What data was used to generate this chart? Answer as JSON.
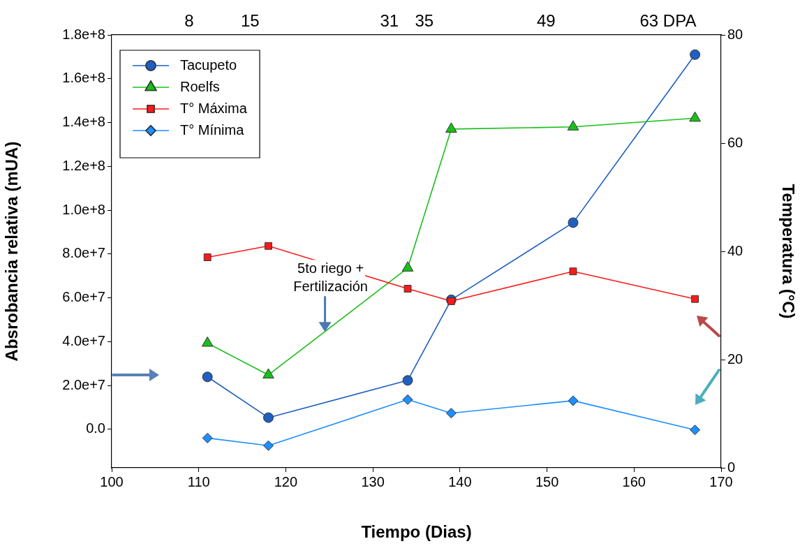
{
  "chart_data": {
    "type": "line",
    "xlabel": "Tiempo (Dias)",
    "ylabel": "Absrobancia relativa (mUA)",
    "y2label": "Temperatura (°C)",
    "x": [
      111,
      118,
      134,
      139,
      153,
      167
    ],
    "series": [
      {
        "name": "Tacupeto",
        "color": "#1f5fbf",
        "marker": "circle",
        "values": [
          23900000.0,
          5300000.0,
          22300000.0,
          59100000.0,
          94300000.0,
          171000000.0
        ]
      },
      {
        "name": "Roelfs",
        "color": "#19c019",
        "marker": "triangle",
        "values": [
          39300000.0,
          24800000.0,
          73600000.0,
          137000000.0,
          138000000.0,
          142000000.0
        ]
      },
      {
        "name": "T° Máxima",
        "color": "#ff1a1a",
        "marker": "square",
        "axis": "y2",
        "values": [
          38.9,
          41.0,
          33.1,
          30.8,
          36.3,
          31.2
        ]
      },
      {
        "name": "T° Mínima",
        "color": "#1e8fff",
        "marker": "diamond",
        "axis": "y2",
        "values": [
          5.5,
          4.1,
          12.6,
          10.1,
          12.4,
          7.0
        ]
      }
    ],
    "xlim": [
      100,
      170
    ],
    "xticks": [
      100,
      110,
      120,
      130,
      140,
      150,
      160,
      170
    ],
    "x2lim": [
      -0.9,
      69.1
    ],
    "x2ticks": [
      8,
      15,
      31,
      35,
      49,
      {
        "value": 63,
        "label": "63 DPA"
      }
    ],
    "ylim": [
      -17600000.0,
      180000000.0
    ],
    "yticks": [
      {
        "value": 0,
        "label": "0.0"
      },
      {
        "value": 20000000.0,
        "label": "2.0e+7"
      },
      {
        "value": 40000000.0,
        "label": "4.0e+7"
      },
      {
        "value": 60000000.0,
        "label": "6.0e+7"
      },
      {
        "value": 80000000.0,
        "label": "8.0e+7"
      },
      {
        "value": 100000000.0,
        "label": "1.0e+8"
      },
      {
        "value": 120000000.0,
        "label": "1.2e+8"
      },
      {
        "value": 140000000.0,
        "label": "1.4e+8"
      },
      {
        "value": 160000000.0,
        "label": "1.6e+8"
      },
      {
        "value": 180000000.0,
        "label": "1.8e+8"
      }
    ],
    "y2lim": [
      0,
      80
    ],
    "y2ticks": [
      0,
      20,
      40,
      60,
      80
    ],
    "annotations": [
      {
        "text": "5to riego +\nFertilización",
        "x": 124.5,
        "y": 44500000.0
      }
    ],
    "grid": false,
    "legend": "top left",
    "line_style": "solid"
  }
}
